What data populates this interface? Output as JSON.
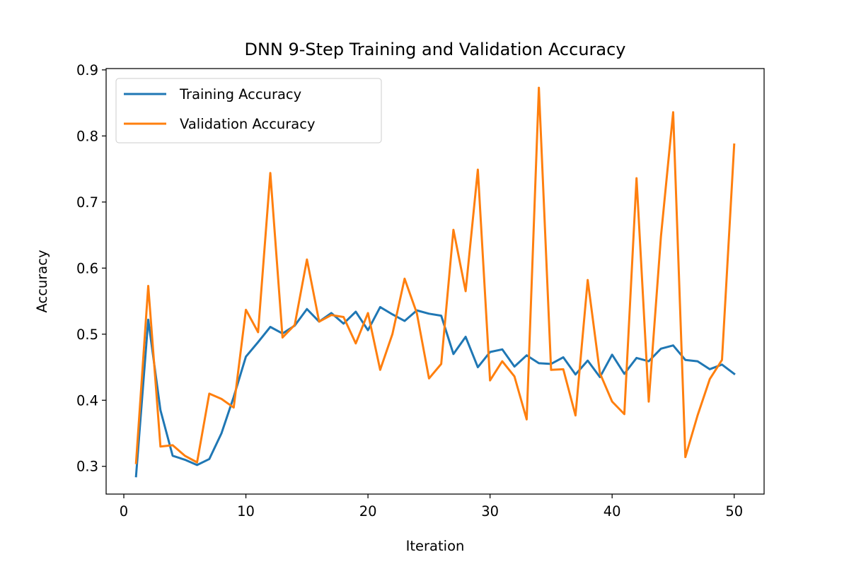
{
  "chart_data": {
    "type": "line",
    "title": "DNN 9-Step Training and Validation Accuracy",
    "xlabel": "Iteration",
    "ylabel": "Accuracy",
    "xlim": [
      -1.45,
      52.45
    ],
    "ylim": [
      0.258,
      0.902
    ],
    "xticks": [
      0,
      10,
      20,
      30,
      40,
      50
    ],
    "yticks": [
      0.3,
      0.4,
      0.5,
      0.6,
      0.7,
      0.8,
      0.9
    ],
    "xtick_labels": [
      "0",
      "10",
      "20",
      "30",
      "40",
      "50"
    ],
    "ytick_labels": [
      "0.3",
      "0.4",
      "0.5",
      "0.6",
      "0.7",
      "0.8",
      "0.9"
    ],
    "grid": false,
    "legend_position": "top-left",
    "x": [
      1,
      2,
      3,
      4,
      5,
      6,
      7,
      8,
      9,
      10,
      11,
      12,
      13,
      14,
      15,
      16,
      17,
      18,
      19,
      20,
      21,
      22,
      23,
      24,
      25,
      26,
      27,
      28,
      29,
      30,
      31,
      32,
      33,
      34,
      35,
      36,
      37,
      38,
      39,
      40,
      41,
      42,
      43,
      44,
      45,
      46,
      47,
      48,
      49,
      50
    ],
    "series": [
      {
        "name": "Training Accuracy",
        "color": "#1f77b4",
        "values": [
          0.285,
          0.522,
          0.385,
          0.316,
          0.31,
          0.302,
          0.311,
          0.35,
          0.405,
          0.466,
          0.488,
          0.511,
          0.501,
          0.513,
          0.538,
          0.519,
          0.532,
          0.516,
          0.534,
          0.506,
          0.541,
          0.53,
          0.52,
          0.536,
          0.531,
          0.528,
          0.47,
          0.496,
          0.45,
          0.473,
          0.477,
          0.451,
          0.468,
          0.456,
          0.455,
          0.465,
          0.439,
          0.46,
          0.435,
          0.469,
          0.44,
          0.464,
          0.459,
          0.478,
          0.483,
          0.461,
          0.459,
          0.447,
          0.454,
          0.44
        ]
      },
      {
        "name": "Validation Accuracy",
        "color": "#ff7f0e",
        "values": [
          0.305,
          0.573,
          0.33,
          0.332,
          0.316,
          0.306,
          0.41,
          0.402,
          0.389,
          0.537,
          0.503,
          0.744,
          0.495,
          0.514,
          0.613,
          0.519,
          0.529,
          0.526,
          0.486,
          0.532,
          0.446,
          0.5,
          0.584,
          0.532,
          0.433,
          0.455,
          0.658,
          0.565,
          0.749,
          0.43,
          0.459,
          0.436,
          0.371,
          0.873,
          0.446,
          0.447,
          0.377,
          0.582,
          0.441,
          0.398,
          0.379,
          0.736,
          0.398,
          0.648,
          0.836,
          0.314,
          0.377,
          0.432,
          0.461,
          0.787
        ]
      }
    ]
  }
}
